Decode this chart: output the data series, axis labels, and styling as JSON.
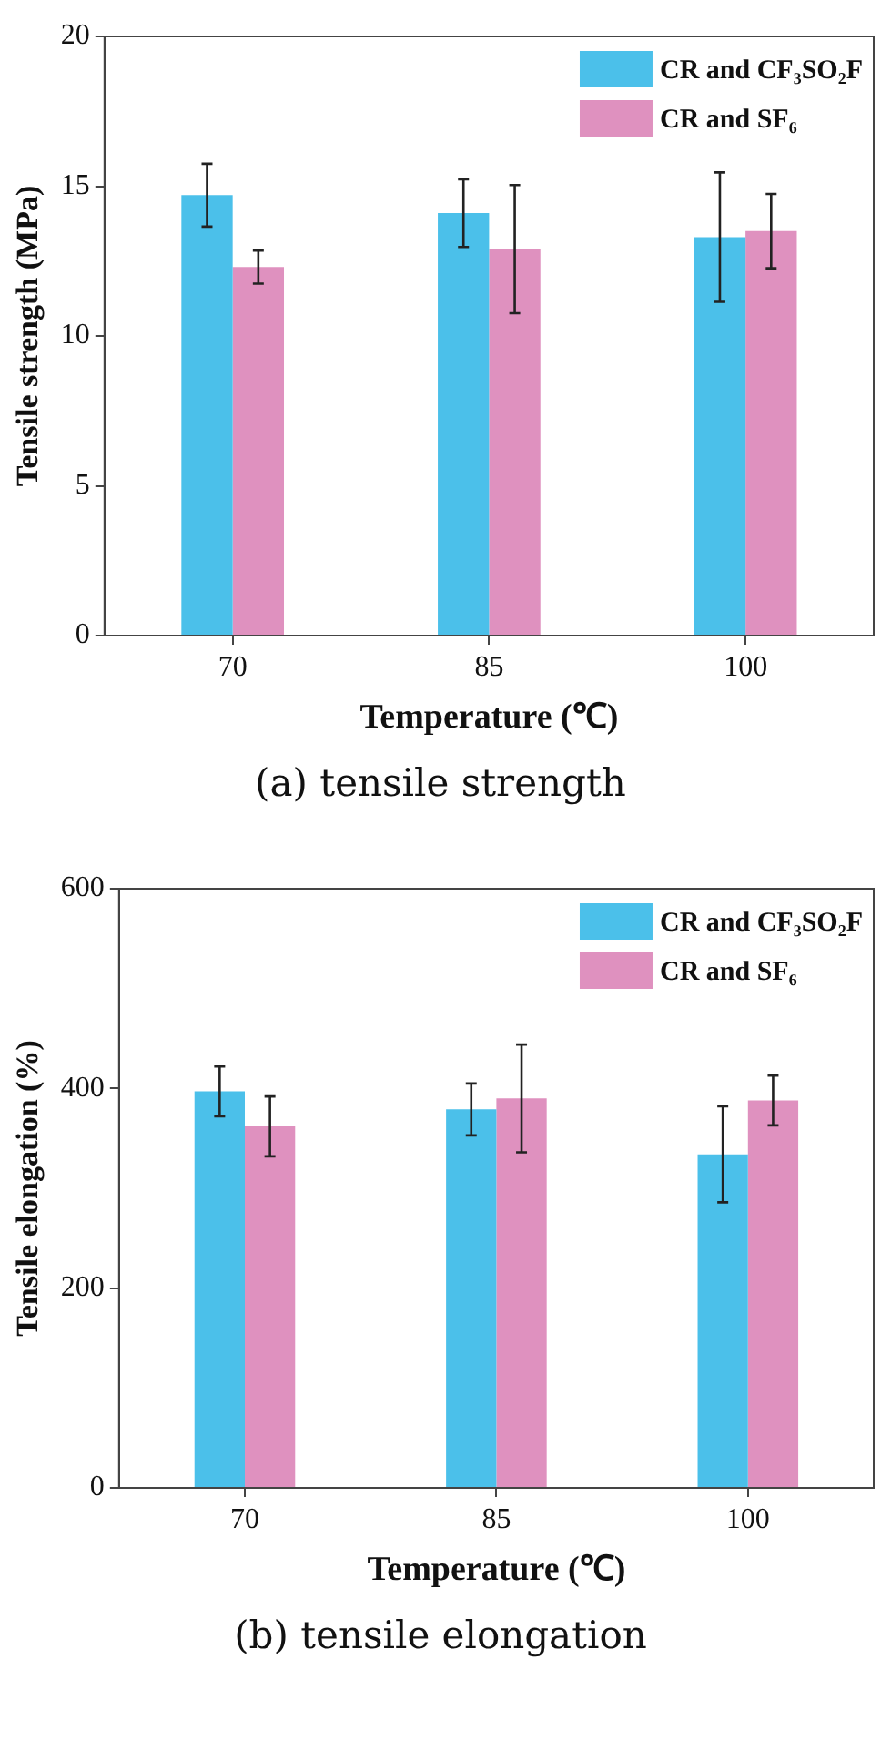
{
  "chart_data": [
    {
      "type": "bar",
      "categories": [
        "70",
        "85",
        "100"
      ],
      "xlabel": "Temperature (℃)",
      "ylabel": "Tensile strength (MPa)",
      "ylim": [
        0,
        20
      ],
      "yticks": [
        0,
        5,
        10,
        15,
        20
      ],
      "grid": false,
      "legend": "top right",
      "annotations": [
        "(a) tensile strength"
      ],
      "series": [
        {
          "name": "CR and CF₃SO₂F",
          "color": "#4bc0ea",
          "values": [
            14.7,
            14.1,
            13.3
          ],
          "errors": [
            1.05,
            1.13,
            2.16
          ]
        },
        {
          "name": "CR and SF₆",
          "color": "#df91bf",
          "values": [
            12.3,
            12.9,
            13.5
          ],
          "errors": [
            0.55,
            2.14,
            1.24
          ]
        }
      ]
    },
    {
      "type": "bar",
      "categories": [
        "70",
        "85",
        "100"
      ],
      "xlabel": "Temperature (℃)",
      "ylabel": "Tensile elongation (%)",
      "ylim": [
        0,
        600
      ],
      "yticks": [
        0,
        200,
        400,
        600
      ],
      "grid": false,
      "legend": "top right",
      "annotations": [
        "(b) tensile elongation"
      ],
      "series": [
        {
          "name": "CR and CF₃SO₂F",
          "color": "#4bc0ea",
          "values": [
            397,
            379,
            334
          ],
          "errors": [
            25,
            26,
            48
          ]
        },
        {
          "name": "CR and SF₆",
          "color": "#df91bf",
          "values": [
            362,
            390,
            388
          ],
          "errors": [
            30,
            54,
            25
          ]
        }
      ]
    }
  ]
}
